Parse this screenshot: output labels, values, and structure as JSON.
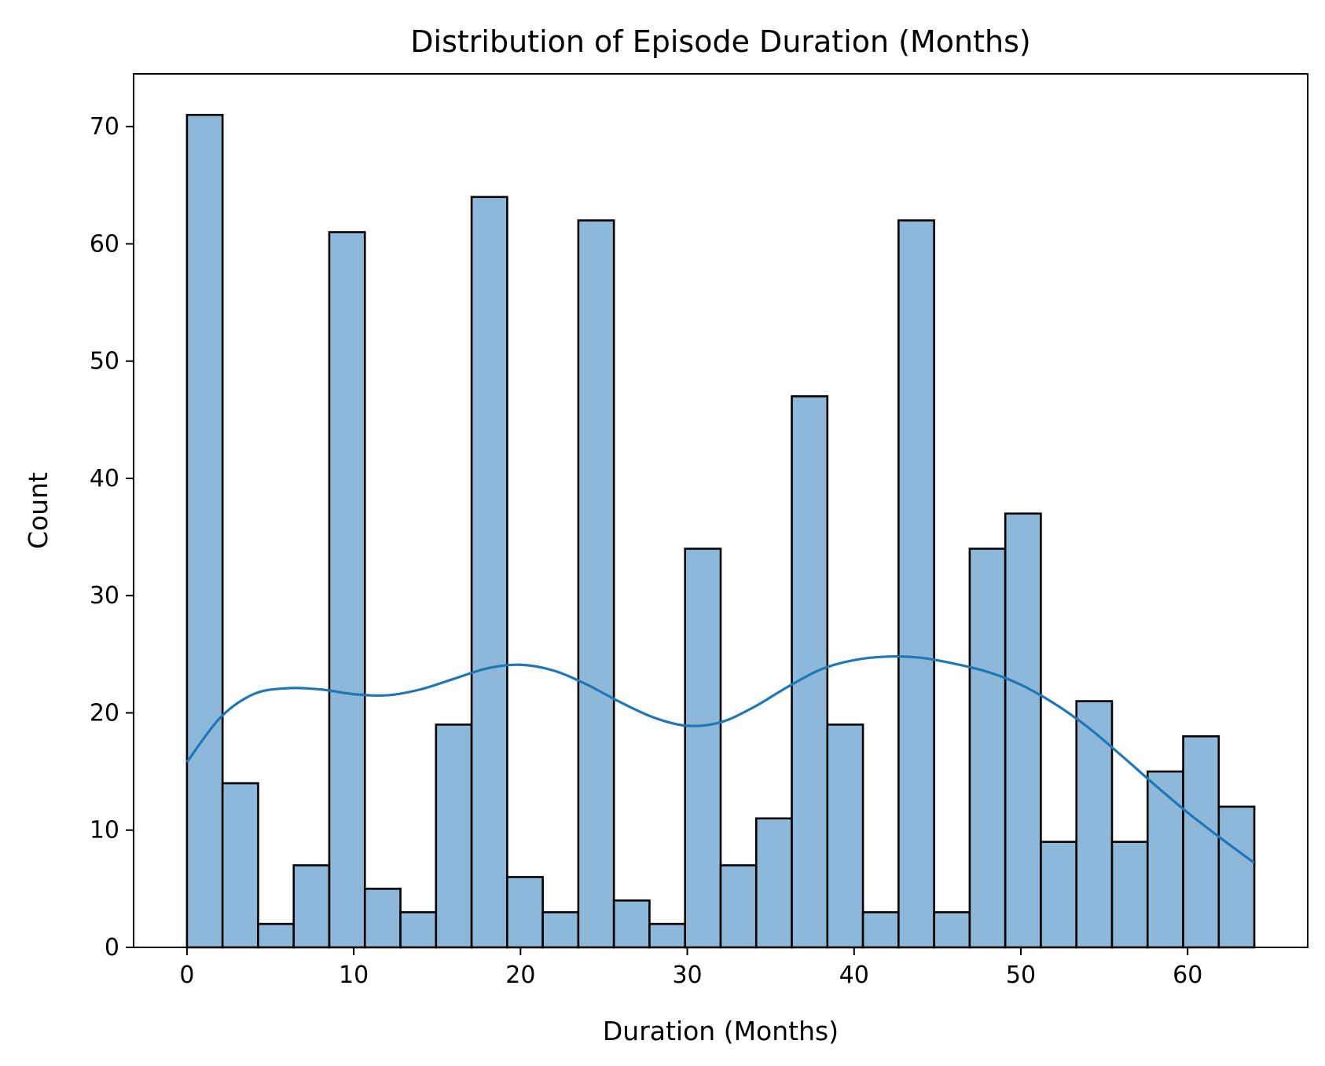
{
  "chart_data": {
    "type": "bar",
    "subtype": "histogram_with_kde",
    "title": "Distribution of Episode Duration (Months)",
    "xlabel": "Duration (Months)",
    "ylabel": "Count",
    "xlim": [
      -3.2,
      67.2
    ],
    "ylim": [
      0,
      74.5
    ],
    "xticks": [
      0,
      10,
      20,
      30,
      40,
      50,
      60
    ],
    "yticks": [
      0,
      10,
      20,
      30,
      40,
      50,
      60,
      70
    ],
    "bin_start": 0,
    "bin_width": 2.1333,
    "values": [
      71,
      14,
      2,
      7,
      61,
      5,
      3,
      19,
      64,
      6,
      3,
      62,
      4,
      2,
      34,
      7,
      11,
      47,
      19,
      3,
      62,
      3,
      34,
      37,
      9,
      21,
      9,
      15,
      18,
      12
    ],
    "kde": {
      "x": [
        0,
        2,
        4,
        6,
        8,
        10,
        12,
        14,
        16,
        18,
        20,
        22,
        24,
        26,
        28,
        30,
        32,
        34,
        36,
        38,
        40,
        42,
        44,
        46,
        48,
        50,
        52,
        54,
        56,
        58,
        60,
        62,
        64
      ],
      "y": [
        15.8,
        19.6,
        21.6,
        22.1,
        22.0,
        21.6,
        21.5,
        22.0,
        22.9,
        23.8,
        24.1,
        23.6,
        22.4,
        20.9,
        19.6,
        18.9,
        19.2,
        20.5,
        22.2,
        23.7,
        24.5,
        24.8,
        24.7,
        24.2,
        23.5,
        22.4,
        20.8,
        18.8,
        16.4,
        13.9,
        11.5,
        9.3,
        7.2
      ]
    },
    "colors": {
      "bar_fill": "#8db8da",
      "bar_edge": "#000000",
      "kde_line": "#1f77b4"
    }
  }
}
